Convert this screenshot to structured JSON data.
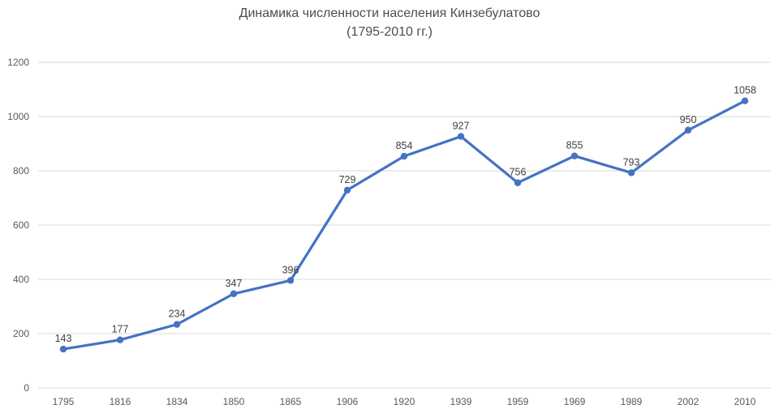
{
  "chart_data": {
    "type": "line",
    "title": "Динамика численности населения Кинзебулатово",
    "subtitle": "(1795-2010 гг.)",
    "categories": [
      "1795",
      "1816",
      "1834",
      "1850",
      "1865",
      "1906",
      "1920",
      "1939",
      "1959",
      "1969",
      "1989",
      "2002",
      "2010"
    ],
    "values": [
      143,
      177,
      234,
      347,
      396,
      729,
      854,
      927,
      756,
      855,
      793,
      950,
      1058
    ],
    "data_labels": [
      "143",
      "177",
      "234",
      "347",
      "396",
      "729",
      "854",
      "927",
      "756",
      "855",
      "793",
      "950",
      "1058"
    ],
    "xlabel": "",
    "ylabel": "",
    "ylim": [
      0,
      1200
    ],
    "ytick_step": 200,
    "yticks": [
      "0",
      "200",
      "400",
      "600",
      "800",
      "1000",
      "1200"
    ],
    "grid": true,
    "legend": "none",
    "marker": "circle",
    "colors": {
      "line": "#4472C4",
      "marker": "#4472C4",
      "grid": "#D9D9D9",
      "tick_text": "#595959",
      "data_label_text": "#404040",
      "title_text": "#4d4d4d",
      "background": "#FFFFFF"
    }
  }
}
